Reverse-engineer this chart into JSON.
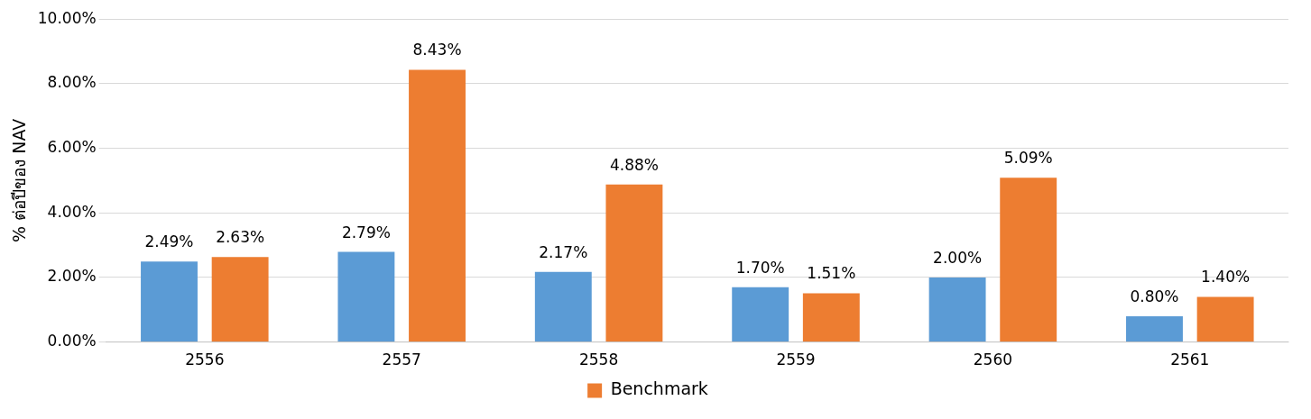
{
  "chart_data": {
    "type": "bar",
    "ylabel": "% ต่อปีของ NAV",
    "categories": [
      "2556",
      "2557",
      "2558",
      "2559",
      "2560",
      "2561"
    ],
    "series": [
      {
        "color": "#5b9bd5",
        "values": [
          2.49,
          2.79,
          2.17,
          1.7,
          2.0,
          0.8
        ],
        "value_labels": [
          "2.49%",
          "2.79%",
          "2.17%",
          "1.70%",
          "2.00%",
          "0.80%"
        ]
      },
      {
        "name": "Benchmark",
        "color": "#ed7d31",
        "values": [
          2.63,
          8.43,
          4.88,
          1.51,
          5.09,
          1.4
        ],
        "value_labels": [
          "2.63%",
          "8.43%",
          "4.88%",
          "1.51%",
          "5.09%",
          "1.40%"
        ]
      }
    ],
    "ylim": [
      0,
      10
    ],
    "yticks": [
      {
        "value": 0,
        "label": "0.00%"
      },
      {
        "value": 2,
        "label": "2.00%"
      },
      {
        "value": 4,
        "label": "4.00%"
      },
      {
        "value": 6,
        "label": "6.00%"
      },
      {
        "value": 8,
        "label": "8.00%"
      },
      {
        "value": 10,
        "label": "10.00%"
      }
    ],
    "grid": "y",
    "legend": "bottom"
  }
}
